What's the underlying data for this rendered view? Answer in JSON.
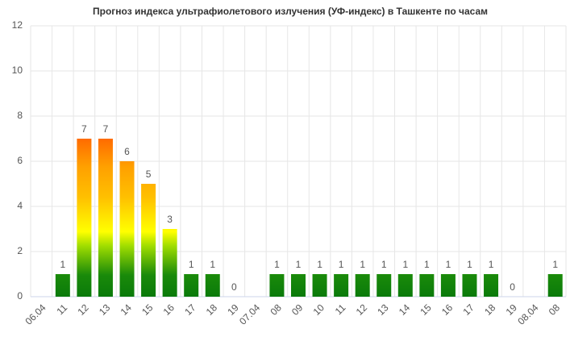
{
  "chart_data": {
    "type": "bar",
    "title": "Прогноз индекса ультрафиолетового излучения (УФ-индекс) в Ташкенте по часам",
    "categories": [
      "06.04",
      "11",
      "12",
      "13",
      "14",
      "15",
      "16",
      "17",
      "18",
      "19",
      "07.04",
      "08",
      "09",
      "10",
      "11",
      "12",
      "13",
      "14",
      "15",
      "16",
      "17",
      "18",
      "19",
      "08.04",
      "08"
    ],
    "values": [
      null,
      1,
      7,
      7,
      6,
      5,
      3,
      1,
      1,
      0,
      null,
      1,
      1,
      1,
      1,
      1,
      1,
      1,
      1,
      1,
      1,
      1,
      0,
      null,
      1
    ],
    "ylim": [
      0,
      12
    ],
    "yticks": [
      0,
      2,
      4,
      6,
      8,
      10,
      12
    ],
    "grid": true
  }
}
